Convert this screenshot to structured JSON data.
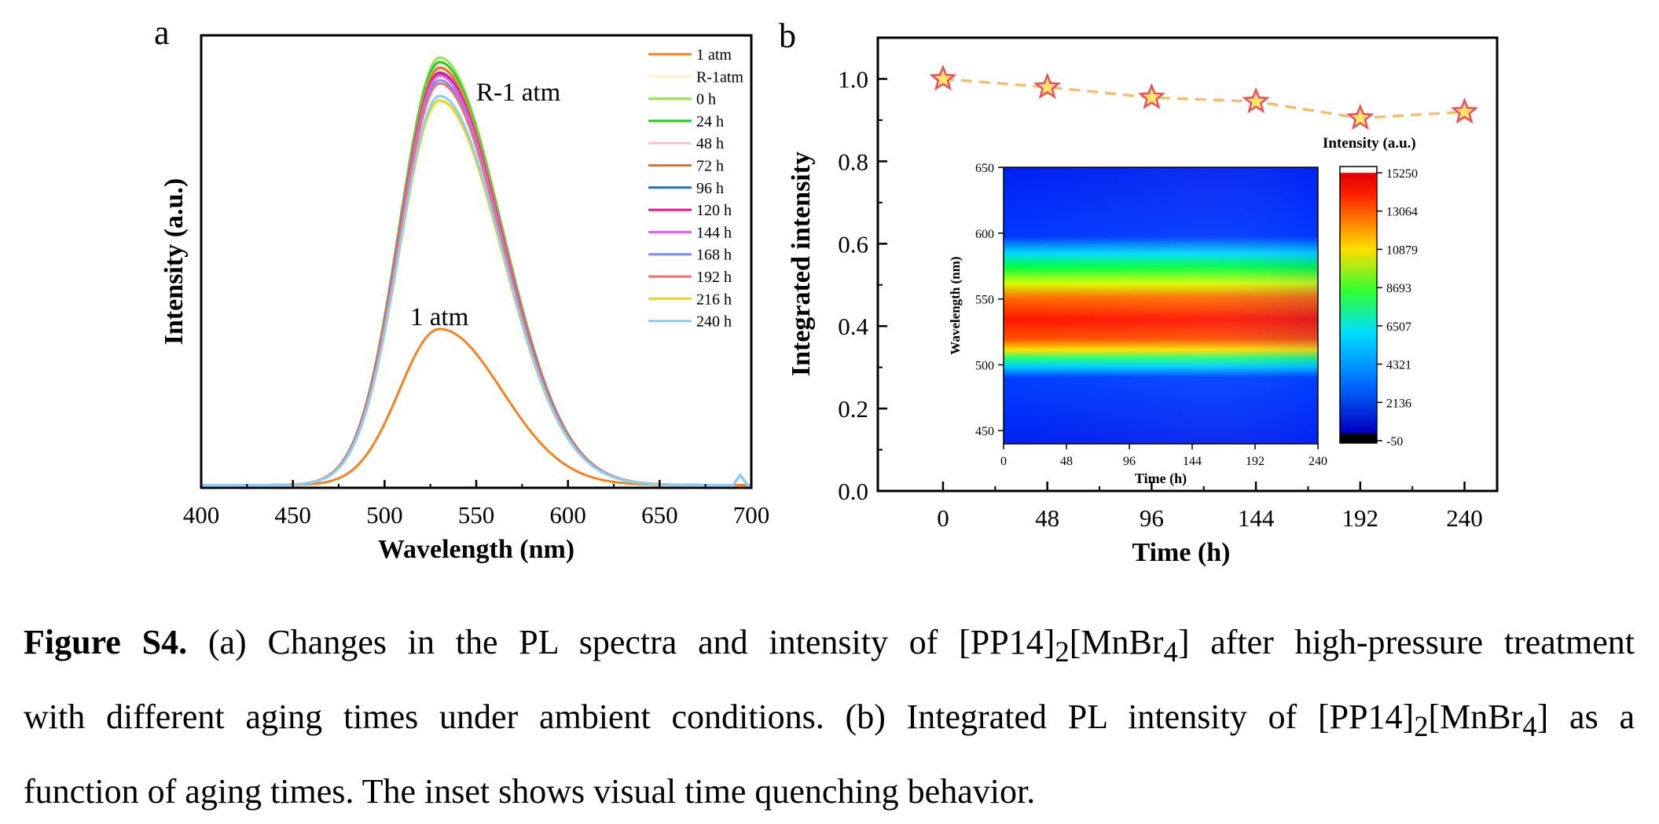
{
  "chart_data": [
    {
      "panel_label": "a",
      "type": "line",
      "xlabel": "Wavelength (nm)",
      "ylabel": "Intensity (a.u.)",
      "xlim": [
        400,
        700
      ],
      "ylim": [
        0,
        100
      ],
      "xticks": [
        400,
        450,
        500,
        550,
        600,
        650,
        700
      ],
      "annotations": [
        "R-1 atm",
        "1 atm"
      ],
      "legend_position": "top-right",
      "legend": [
        "1 atm",
        "R-1atm",
        "0 h",
        "24 h",
        "48 h",
        "72 h",
        "96 h",
        "120 h",
        "144 h",
        "168 h",
        "192 h",
        "216 h",
        "240 h"
      ],
      "peak_wavelength": 530,
      "width_left": 22,
      "width_right": 34,
      "series": [
        {
          "name": "1 atm",
          "color": "#F58220",
          "peak": 34.5
        },
        {
          "name": "R-1atm",
          "color": "#FFF2CC",
          "peak": 94
        },
        {
          "name": "0 h",
          "color": "#99E060",
          "peak": 94.5
        },
        {
          "name": "24 h",
          "color": "#22CC22",
          "peak": 93.5
        },
        {
          "name": "48 h",
          "color": "#F9C0C8",
          "peak": 92.5
        },
        {
          "name": "72 h",
          "color": "#FF6A13",
          "peak": 92.2
        },
        {
          "name": "96 h",
          "color": "#1E6FE0",
          "peak": 91.2
        },
        {
          "name": "120 h",
          "color": "#E8188A",
          "peak": 91
        },
        {
          "name": "144 h",
          "color": "#E060E8",
          "peak": 90.5
        },
        {
          "name": "168 h",
          "color": "#7F8CF0",
          "peak": 89.5
        },
        {
          "name": "192 h",
          "color": "#F07070",
          "peak": 88.8
        },
        {
          "name": "216 h",
          "color": "#F5D400",
          "peak": 85
        },
        {
          "name": "240 h",
          "color": "#87CEFA",
          "peak": 86
        }
      ]
    },
    {
      "panel_label": "b",
      "type": "line",
      "xlabel": "Time (h)",
      "ylabel": "Integrated intensity",
      "xlim": [
        -30,
        255
      ],
      "ylim": [
        0,
        1.1
      ],
      "xticks": [
        0,
        48,
        96,
        144,
        192,
        240
      ],
      "yticks": [
        "0.0",
        "0.2",
        "0.4",
        "0.6",
        "0.8",
        "1.0"
      ],
      "series": [
        {
          "x": [
            0,
            48,
            96,
            144,
            192,
            240
          ],
          "y": [
            1.0,
            0.98,
            0.955,
            0.945,
            0.905,
            0.92
          ],
          "line_color": "#F0C070",
          "marker": "star",
          "marker_fill": "#FFE36E",
          "marker_edge": "#E8505B"
        }
      ]
    },
    {
      "panel_label": "b-inset",
      "type": "heatmap",
      "xlabel": "Time (h)",
      "ylabel": "Wavelength (nm)",
      "xlim": [
        0,
        240
      ],
      "ylim": [
        440,
        650
      ],
      "xticks": [
        0,
        48,
        96,
        144,
        192,
        240
      ],
      "yticks": [
        450,
        500,
        550,
        600,
        650
      ],
      "colorbar_title": "Intensity (a.u.)",
      "colorbar_ticks": [
        "15250",
        "13064",
        "10879",
        "8693",
        "6507",
        "4321",
        "2136",
        "-50"
      ],
      "colorbar_range": [
        -50,
        15250
      ],
      "peak_wavelength": 530
    }
  ],
  "caption": {
    "label": "Figure S4.",
    "line1_text": " (a) Changes in the PL spectra and intensity of [PP14]",
    "line1_sub1": "2",
    "line1_text2": "[MnBr",
    "line1_sub2": "4",
    "line1_text3": "] after high-pressure treatment",
    "line2_text": "with different aging times under ambient conditions. (b) Integrated PL intensity of [PP14]",
    "line2_sub1": "2",
    "line2_text2": "[MnBr",
    "line2_sub2": "4",
    "line2_text3": "] as a",
    "line3_text": "function of aging times. The inset shows visual time quenching behavior."
  }
}
